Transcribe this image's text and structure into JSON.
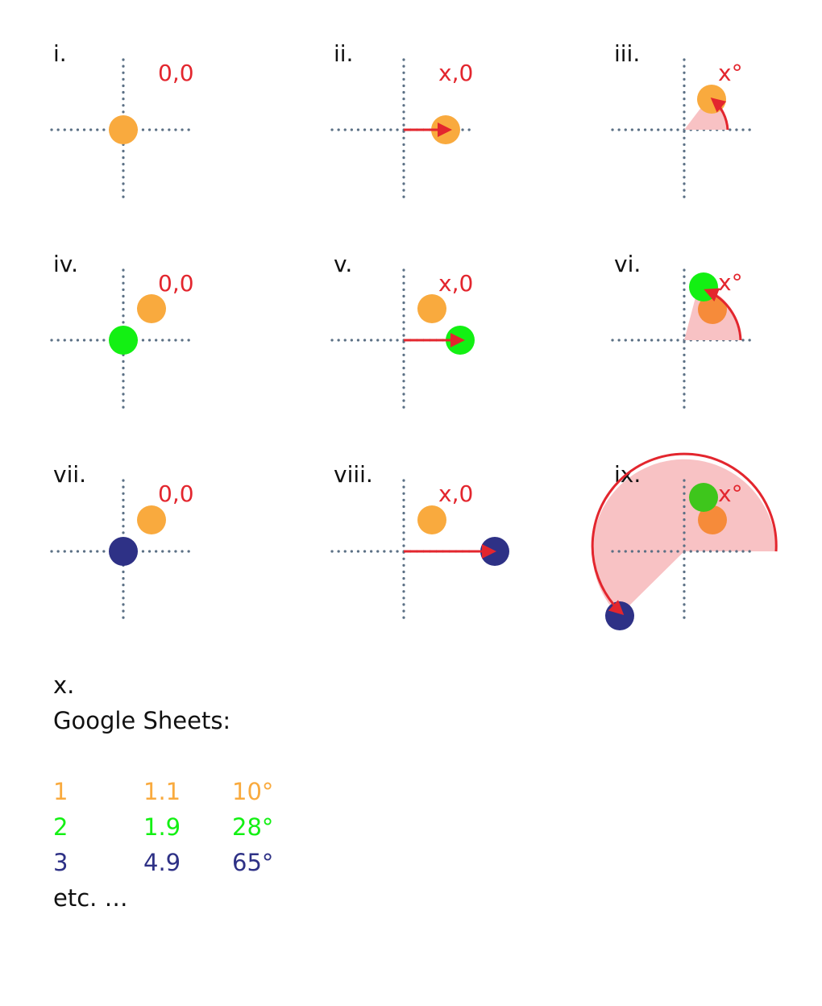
{
  "panels": [
    {
      "label": "i.",
      "coord": "0,0"
    },
    {
      "label": "ii.",
      "coord": "x,0"
    },
    {
      "label": "iii.",
      "coord": "x°"
    },
    {
      "label": "iv.",
      "coord": "0,0"
    },
    {
      "label": "v.",
      "coord": "x,0"
    },
    {
      "label": "vi.",
      "coord": "x°"
    },
    {
      "label": "vii.",
      "coord": "0,0"
    },
    {
      "label": "viii.",
      "coord": "x,0"
    },
    {
      "label": "ix.",
      "coord": "x°"
    }
  ],
  "colors": {
    "accent_red": "#e3262e",
    "sector_fill": "#f8c2c4",
    "orange": "#f9aa3e",
    "orange_dark": "#f68b3a",
    "green": "#13f013",
    "green_dark": "#3ec61c",
    "navy": "#2e3186",
    "axis": "#5b7085"
  },
  "bottom": {
    "section_label": "x.",
    "heading": "Google Sheets:",
    "rows": [
      {
        "c1": "1",
        "c2": "1.1",
        "c3": "10°",
        "color": "#f9aa3e"
      },
      {
        "c1": "2",
        "c2": "1.9",
        "c3": "28°",
        "color": "#13f013"
      },
      {
        "c1": "3",
        "c2": "4.9",
        "c3": "65°",
        "color": "#2e3186"
      }
    ],
    "footer": "etc. …"
  }
}
